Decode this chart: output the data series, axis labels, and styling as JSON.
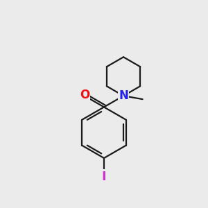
{
  "background_color": "#ebebeb",
  "bond_color": "#1a1a1a",
  "oxygen_color": "#ee1111",
  "nitrogen_color": "#2222ee",
  "iodine_color": "#cc33cc",
  "bond_width": 1.6,
  "figsize": [
    3.0,
    3.0
  ],
  "dpi": 100,
  "xlim": [
    0,
    10
  ],
  "ylim": [
    0,
    10
  ]
}
